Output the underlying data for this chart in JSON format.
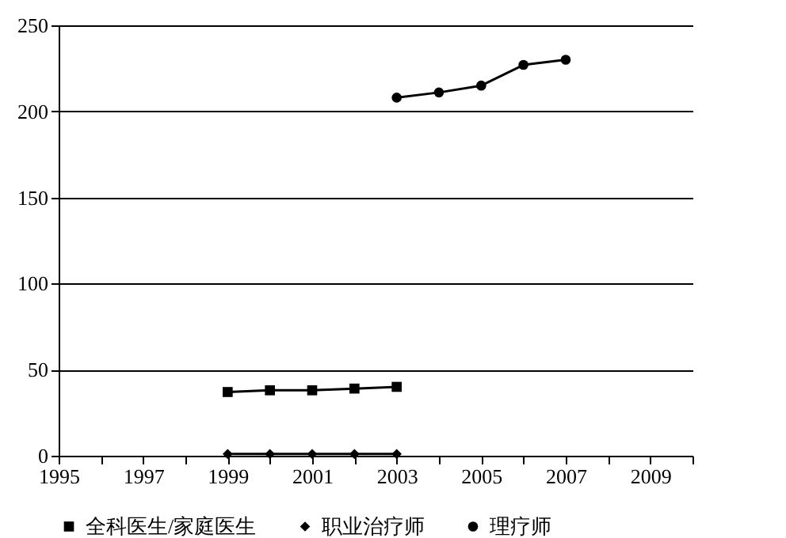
{
  "chart_data": {
    "type": "line",
    "xlim": [
      1995,
      2010
    ],
    "xticks": [
      1995,
      {
        "value": 1996,
        "label": null
      },
      1997,
      {
        "value": 1998,
        "label": null
      },
      1999,
      {
        "value": 2000,
        "label": null
      },
      2001,
      {
        "value": 2002,
        "label": null
      },
      2003,
      {
        "value": 2004,
        "label": null
      },
      2005,
      {
        "value": 2006,
        "label": null
      },
      2007,
      {
        "value": 2008,
        "label": null
      },
      2009,
      {
        "value": 2010,
        "label": null
      }
    ],
    "ylim": [
      0,
      250
    ],
    "yticks": [
      0,
      50,
      100,
      150,
      200,
      250
    ],
    "grid": "y",
    "legend": "bottom",
    "line_style": "solid",
    "series": [
      {
        "name": "全科医生/家庭医生",
        "color": "#000000",
        "marker": "square",
        "x": [
          1999,
          2000,
          2001,
          2002,
          2003
        ],
        "values": [
          37,
          38,
          38,
          39,
          40
        ]
      },
      {
        "name": "职业治疗师",
        "color": "#000000",
        "marker": "diamond",
        "x": [
          1999,
          2000,
          2001,
          2002,
          2003
        ],
        "values": [
          1,
          1,
          1,
          1,
          1
        ]
      },
      {
        "name": "理疗师",
        "color": "#000000",
        "marker": "circle",
        "x": [
          2003,
          2004,
          2005,
          2006,
          2007
        ],
        "values": [
          208,
          211,
          215,
          227,
          230
        ]
      }
    ]
  }
}
